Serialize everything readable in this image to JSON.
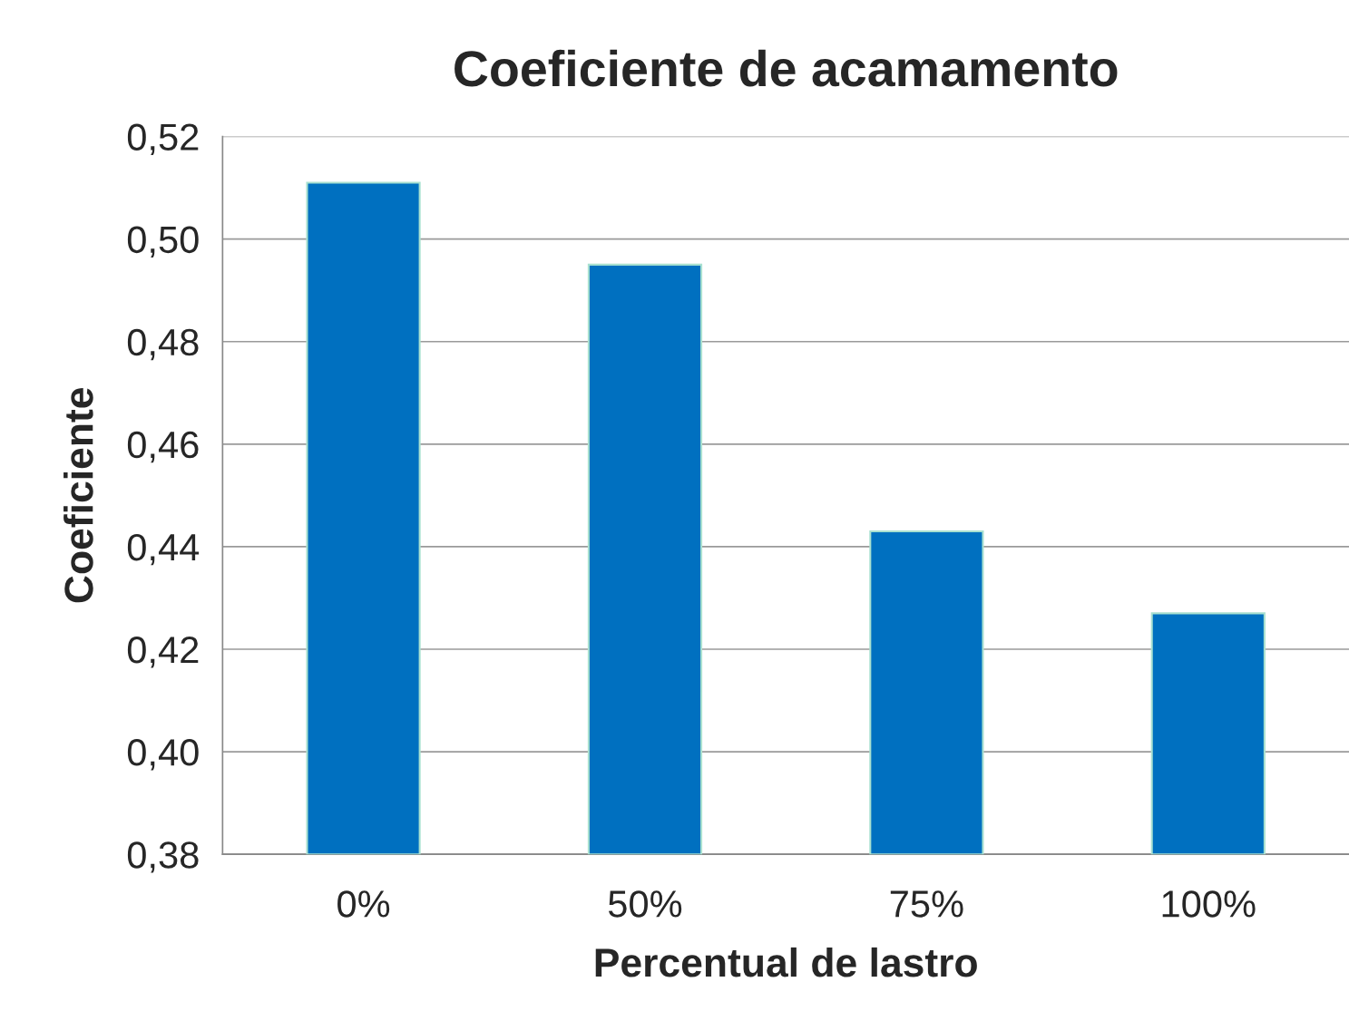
{
  "chart_data": {
    "type": "bar",
    "title": "Coeficiente de acamamento",
    "xlabel": "Percentual de lastro",
    "ylabel": "Coeficiente",
    "categories": [
      "0%",
      "50%",
      "75%",
      "100%"
    ],
    "values": [
      0.511,
      0.495,
      0.443,
      0.427
    ],
    "color": "#0070c0",
    "ylim": [
      0.38,
      0.52
    ],
    "yticks": [
      {
        "value": 0.38,
        "label": "0,38"
      },
      {
        "value": 0.4,
        "label": "0,40"
      },
      {
        "value": 0.42,
        "label": "0,42"
      },
      {
        "value": 0.44,
        "label": "0,44"
      },
      {
        "value": 0.46,
        "label": "0,46"
      },
      {
        "value": 0.48,
        "label": "0,48"
      },
      {
        "value": 0.5,
        "label": "0,50"
      },
      {
        "value": 0.52,
        "label": "0,52"
      }
    ],
    "grid": "y",
    "legend": false
  }
}
